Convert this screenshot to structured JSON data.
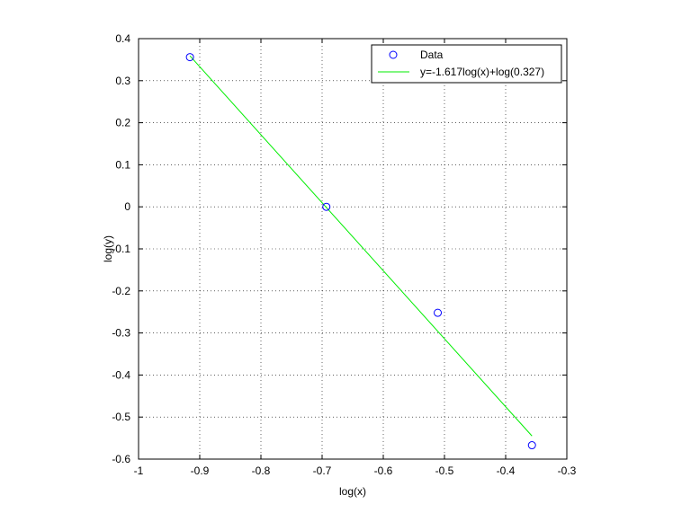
{
  "chart_data": {
    "type": "scatter",
    "title": "",
    "xlabel": "log(x)",
    "ylabel": "log(y)",
    "xlim": [
      -1,
      -0.3
    ],
    "ylim": [
      -0.6,
      0.4
    ],
    "xticks": [
      -1,
      -0.9,
      -0.8,
      -0.7,
      -0.6,
      -0.5,
      -0.4,
      -0.3
    ],
    "xtick_labels": [
      "-1",
      "-0.9",
      "-0.8",
      "-0.7",
      "-0.6",
      "-0.5",
      "-0.4",
      "-0.3"
    ],
    "yticks": [
      -0.6,
      -0.5,
      -0.4,
      -0.3,
      -0.2,
      -0.1,
      0,
      0.1,
      0.2,
      0.3,
      0.4
    ],
    "ytick_labels": [
      "-0.6",
      "-0.5",
      "-0.4",
      "-0.3",
      "-0.2",
      "-0.1",
      "0",
      "0.1",
      "0.2",
      "0.3",
      "0.4"
    ],
    "grid": true,
    "legend_position": "top-right",
    "series": [
      {
        "name": "Data",
        "kind": "scatter",
        "marker": "circle",
        "color": "#0000ff",
        "x": [
          -0.916,
          -0.693,
          -0.511,
          -0.357
        ],
        "y": [
          0.356,
          0.0,
          -0.252,
          -0.567
        ]
      },
      {
        "name": "y=-1.617log(x)+log(0.327)",
        "kind": "line",
        "color": "#00ee00",
        "x": [
          -0.916,
          -0.357
        ],
        "y": [
          0.359,
          -0.545
        ]
      }
    ]
  }
}
